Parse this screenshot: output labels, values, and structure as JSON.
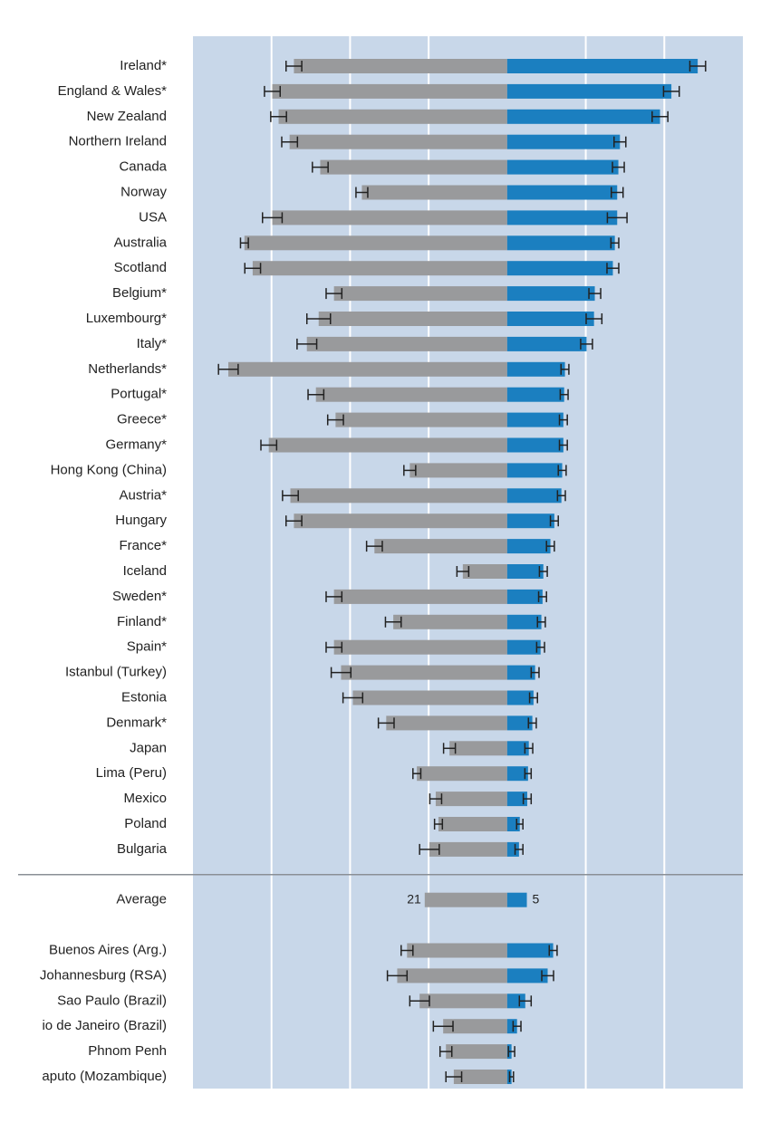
{
  "chart_data": {
    "type": "diverging-bar",
    "categories": [
      "Ireland*",
      "England & Wales*",
      "New Zealand",
      "Northern Ireland",
      "Canada",
      "Norway",
      "USA",
      "Australia",
      "Scotland",
      "Belgium*",
      "Luxembourg*",
      "Italy*",
      "Netherlands*",
      "Portugal*",
      "Greece*",
      "Germany*",
      "Hong Kong (China)",
      "Austria*",
      "Hungary",
      "France*",
      "Iceland",
      "Sweden*",
      "Finland*",
      "Spain*",
      "Istanbul (Turkey)",
      "Estonia",
      "Denmark*",
      "Japan",
      "Lima (Peru)",
      "Mexico",
      "Poland",
      "Bulgaria",
      null,
      "Average",
      null,
      "Buenos Aires (Arg.)",
      "Johannesburg (RSA)",
      "Sao Paulo (Brazil)",
      "io de Janeiro (Brazil)",
      "Phnom Penh",
      "aputo (Mozambique)"
    ],
    "series": [
      {
        "color": "#999a9c",
        "values": [
          -54.3,
          -59.8,
          -58.2,
          -55.4,
          -47.6,
          -37.0,
          -59.8,
          -66.9,
          -64.8,
          -44.1,
          -48.0,
          -51.0,
          -71.0,
          -48.7,
          -43.7,
          -60.7,
          -24.8,
          -55.2,
          -54.3,
          -33.8,
          -11.3,
          -44.1,
          -29.0,
          -44.1,
          -42.3,
          -39.3,
          -30.8,
          -14.7,
          -23.0,
          -18.2,
          -17.5,
          -19.8,
          null,
          -21,
          null,
          -25.5,
          -28.0,
          -22.3,
          -16.3,
          -15.6,
          -13.6
        ],
        "value_labels": [
          null,
          null,
          null,
          null,
          null,
          null,
          null,
          null,
          null,
          null,
          null,
          null,
          null,
          null,
          null,
          null,
          null,
          null,
          null,
          null,
          null,
          null,
          null,
          null,
          null,
          null,
          null,
          null,
          null,
          null,
          null,
          null,
          null,
          "21",
          null,
          null,
          null,
          null,
          null,
          null,
          null
        ],
        "errors": [
          2,
          2,
          2,
          2,
          2,
          1.5,
          2.5,
          1,
          2,
          2,
          3,
          2.5,
          2.5,
          2,
          2,
          2,
          1.5,
          2,
          2,
          2,
          1.5,
          2,
          2,
          2,
          2.5,
          2.5,
          2,
          1.5,
          1,
          1.5,
          1,
          2.5,
          null,
          null,
          null,
          1.5,
          2.5,
          2.5,
          2.5,
          1.5,
          2
        ]
      },
      {
        "color": "#1b7fc0",
        "values": [
          48.5,
          41.8,
          38.9,
          28.7,
          28.3,
          28.0,
          28.0,
          27.4,
          26.9,
          22.3,
          22.1,
          20.2,
          14.7,
          14.5,
          14.3,
          14.3,
          14.0,
          13.8,
          12.0,
          11.0,
          9.2,
          9.0,
          8.7,
          8.5,
          7.1,
          6.7,
          6.4,
          5.5,
          5.3,
          5.1,
          3.2,
          3.0,
          null,
          5,
          null,
          11.7,
          10.3,
          4.6,
          2.5,
          1.1,
          1.1
        ],
        "value_labels": [
          null,
          null,
          null,
          null,
          null,
          null,
          null,
          null,
          null,
          null,
          null,
          null,
          null,
          null,
          null,
          null,
          null,
          null,
          null,
          null,
          null,
          null,
          null,
          null,
          null,
          null,
          null,
          null,
          null,
          null,
          null,
          null,
          null,
          "5",
          null,
          null,
          null,
          null,
          null,
          null,
          null
        ],
        "errors": [
          2,
          2,
          2,
          1.5,
          1.5,
          1.5,
          2.5,
          1,
          1.5,
          1.5,
          2,
          1.5,
          1,
          1,
          1,
          1,
          1,
          1,
          1,
          1,
          1,
          1,
          1,
          1,
          1,
          1,
          1,
          1,
          0.8,
          1,
          0.8,
          1,
          null,
          null,
          null,
          1,
          1.5,
          1.5,
          1,
          0.8,
          0.5
        ]
      }
    ],
    "xlim": [
      -80,
      60
    ],
    "xticks": [
      -60,
      -40,
      -20,
      20,
      40
    ],
    "grid": true
  }
}
